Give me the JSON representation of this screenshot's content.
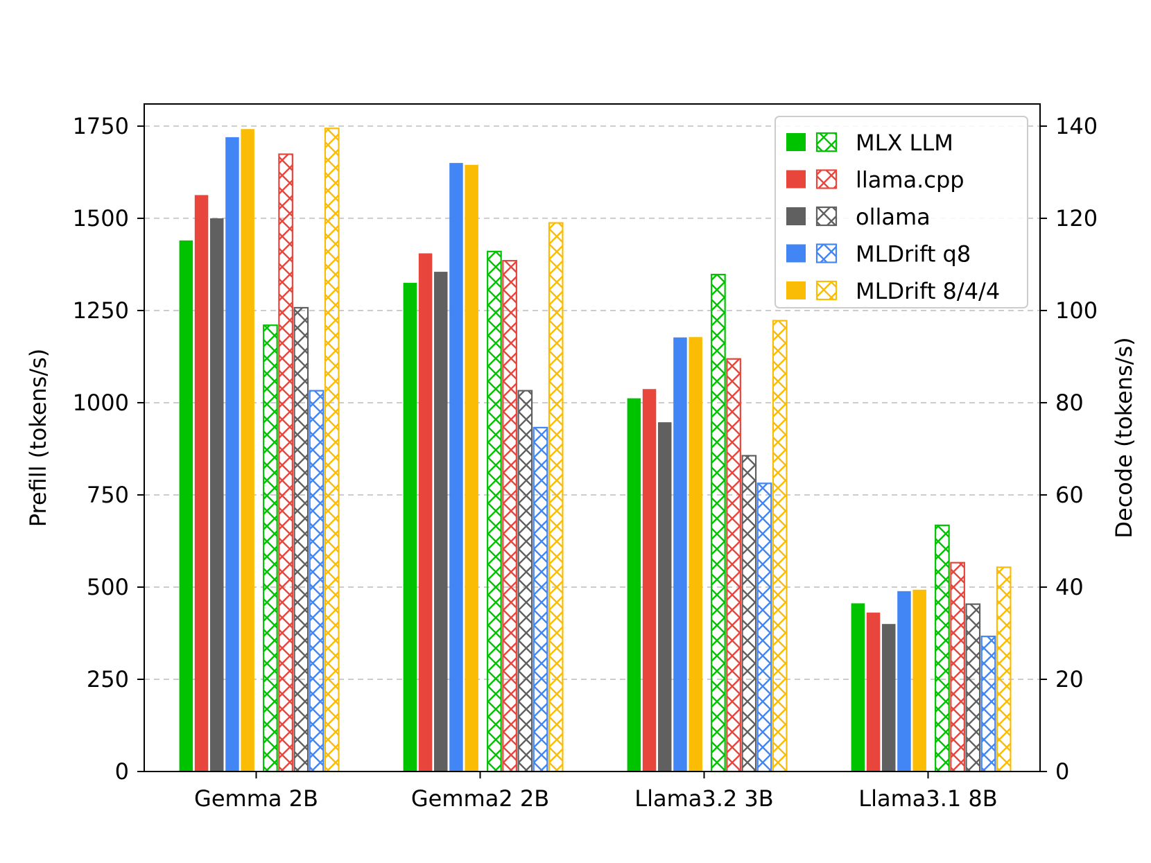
{
  "chart_data": {
    "type": "bar",
    "categories": [
      "Gemma 2B",
      "Gemma2 2B",
      "Llama3.2 3B",
      "Llama3.1 8B"
    ],
    "left_axis": {
      "label": "Prefill (tokens/s)",
      "ylim": [
        0,
        1810
      ],
      "ticks": [
        0,
        250,
        500,
        750,
        1000,
        1250,
        1500,
        1750
      ]
    },
    "right_axis": {
      "label": "Decode (tokens/s)",
      "ylim": [
        0,
        144.8
      ],
      "ticks": [
        0,
        20,
        40,
        60,
        80,
        100,
        120,
        140
      ]
    },
    "grid": "horizontal dashed",
    "legend_position": "top-right",
    "series": [
      {
        "name": "MLX LLM",
        "color": "#00C300",
        "prefill": [
          1440,
          1325,
          1012,
          456
        ],
        "decode": [
          96.8,
          112.8,
          107.8,
          53.4
        ]
      },
      {
        "name": "llama.cpp",
        "color": "#E8453C",
        "prefill": [
          1563,
          1405,
          1037,
          431
        ],
        "decode": [
          133.9,
          110.8,
          89.5,
          45.3
        ]
      },
      {
        "name": "ollama",
        "color": "#606060",
        "prefill": [
          1500,
          1355,
          947,
          400
        ],
        "decode": [
          100.6,
          82.6,
          68.5,
          36.3
        ]
      },
      {
        "name": "MLDrift q8",
        "color": "#4285F4",
        "prefill": [
          1720,
          1650,
          1177,
          489
        ],
        "decode": [
          82.6,
          74.6,
          62.5,
          29.3
        ]
      },
      {
        "name": "MLDrift 8/4/4",
        "color": "#FBBC05",
        "prefill": [
          1742,
          1645,
          1178,
          493
        ],
        "decode": [
          139.5,
          119.0,
          97.8,
          44.3
        ]
      }
    ]
  }
}
